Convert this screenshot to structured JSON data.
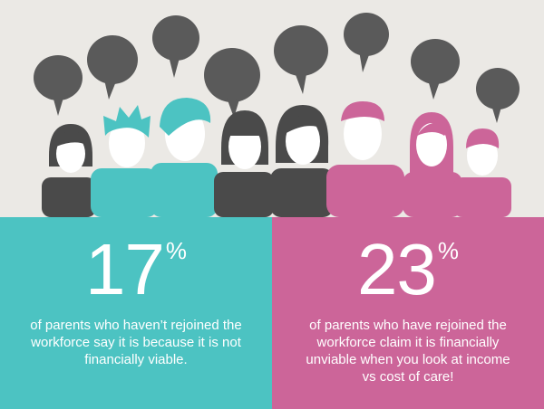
{
  "colors": {
    "background": "#ebe9e5",
    "teal": "#4cc3c2",
    "pink": "#cc6599",
    "dark": "#4a4a4a",
    "bubble": "#5a5a5a",
    "face": "#ffffff"
  },
  "icons": {
    "people": "people-crowd-icon",
    "speech": "speech-bubble-icon"
  },
  "left_stat": {
    "value": "17",
    "unit": "%",
    "description": "of parents who haven’t rejoined the workforce say it is because it is not financially viable."
  },
  "right_stat": {
    "value": "23",
    "unit": "%",
    "description": "of parents who have rejoined the workforce claim it is financially unviable when you look at income vs cost of care!"
  }
}
